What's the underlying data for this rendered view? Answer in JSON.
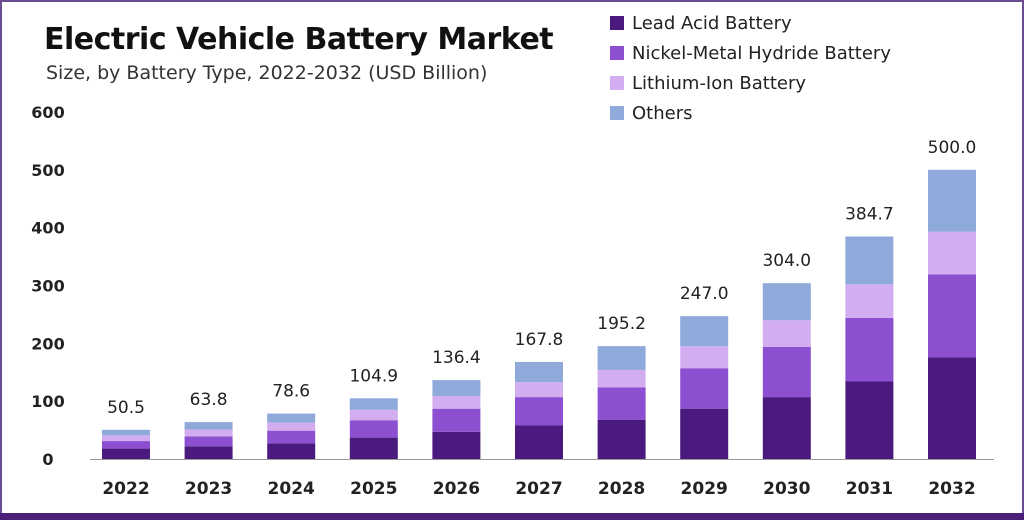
{
  "title": "Electric Vehicle Battery Market",
  "subtitle": "Size, by Battery Type, 2022-2032 (USD Billion)",
  "colors": {
    "lead_acid": "#4b1a7e",
    "nimh": "#8b4fcf",
    "lithium_ion": "#d2aef0",
    "others": "#8fa9db",
    "frame": "#6a4c93",
    "axis": "#999999"
  },
  "chart_data": {
    "type": "bar",
    "stacked": true,
    "title": "Electric Vehicle Battery Market",
    "subtitle": "Size, by Battery Type, 2022-2032 (USD Billion)",
    "xlabel": "",
    "ylabel": "",
    "ylim": [
      0,
      600
    ],
    "yticks": [
      0,
      100,
      200,
      300,
      400,
      500,
      600
    ],
    "grid": false,
    "legend_position": "top-right",
    "categories": [
      "2022",
      "2023",
      "2024",
      "2025",
      "2026",
      "2027",
      "2028",
      "2029",
      "2030",
      "2031",
      "2032"
    ],
    "totals": [
      "50.5",
      "63.8",
      "78.6",
      "104.9",
      "136.4",
      "167.8",
      "195.2",
      "247.0",
      "304.0",
      "384.7",
      "500.0"
    ],
    "series": [
      {
        "name": "Lead Acid Battery",
        "color_key": "lead_acid",
        "values": [
          18,
          22,
          27,
          37,
          47,
          58,
          68,
          87,
          107,
          134,
          176
        ]
      },
      {
        "name": "Nickel-Metal Hydride Battery",
        "color_key": "nimh",
        "values": [
          13,
          17,
          22,
          30,
          40,
          49,
          56,
          70,
          87,
          110,
          143
        ]
      },
      {
        "name": "Lithium-Ion Battery",
        "color_key": "lithium_ion",
        "values": [
          10,
          12,
          14,
          18,
          22,
          26,
          30,
          38,
          46,
          58,
          74
        ]
      },
      {
        "name": "Others",
        "color_key": "others",
        "values": [
          9.5,
          12.8,
          15.6,
          19.9,
          27.4,
          34.8,
          41.2,
          52.0,
          64.0,
          82.7,
          107.0
        ]
      }
    ]
  }
}
